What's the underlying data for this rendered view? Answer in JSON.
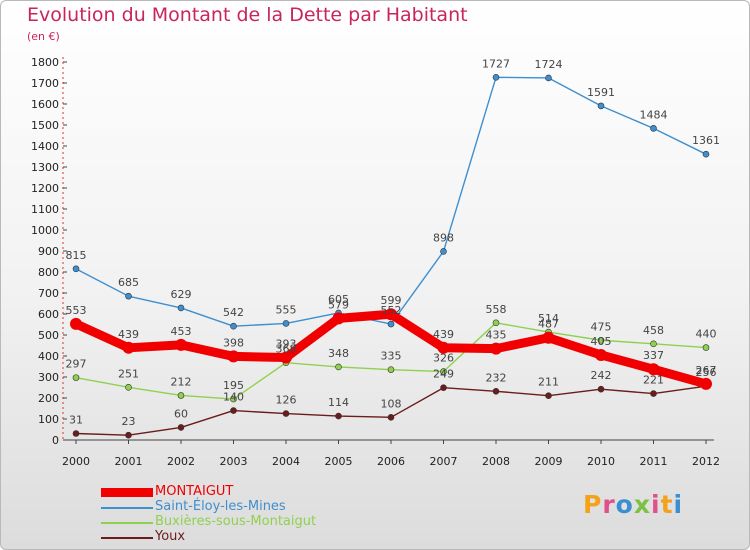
{
  "title": "Evolution du Montant de la Dette par Habitant",
  "unit": "(en €)",
  "logo": {
    "text": "Proxiti",
    "colors": [
      "#f4a21b",
      "#e0508a",
      "#3a8fd0",
      "#7cc242",
      "#e0508a",
      "#f4a21b",
      "#3a8fd0"
    ]
  },
  "chart_data": {
    "type": "line",
    "title": "Evolution du Montant de la Dette par Habitant",
    "ylabel": "(en €)",
    "xlabel": "",
    "x": [
      "2000",
      "2001",
      "2002",
      "2003",
      "2004",
      "2005",
      "2006",
      "2007",
      "2008",
      "2009",
      "2010",
      "2011",
      "2012"
    ],
    "ylim": [
      0,
      1800
    ],
    "yticks": [
      0,
      100,
      200,
      300,
      400,
      500,
      600,
      700,
      800,
      900,
      1000,
      1100,
      1200,
      1300,
      1400,
      1500,
      1600,
      1700,
      1800
    ],
    "grid": false,
    "legend_position": "bottom-left",
    "series": [
      {
        "name": "MONTAIGUT",
        "color": "#f00000",
        "values": [
          553,
          439,
          453,
          398,
          393,
          579,
          599,
          439,
          435,
          487,
          405,
          337,
          267
        ]
      },
      {
        "name": "Saint-Éloy-les-Mines",
        "color": "#3e8fd0",
        "values": [
          815,
          685,
          629,
          542,
          555,
          605,
          552,
          898,
          1727,
          1724,
          1591,
          1484,
          1361
        ]
      },
      {
        "name": "Buxières-sous-Montaigut",
        "color": "#8fd14f",
        "values": [
          297,
          251,
          212,
          195,
          368,
          348,
          335,
          326,
          558,
          514,
          475,
          458,
          440
        ]
      },
      {
        "name": "Youx",
        "color": "#6b1c1c",
        "values": [
          31,
          23,
          60,
          140,
          126,
          114,
          108,
          249,
          232,
          211,
          242,
          221,
          256
        ]
      }
    ]
  }
}
